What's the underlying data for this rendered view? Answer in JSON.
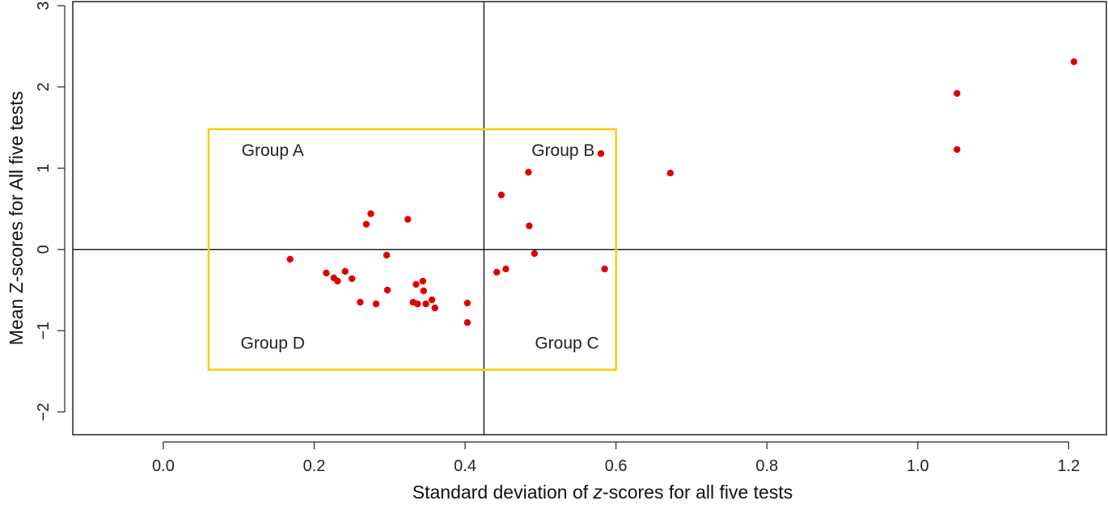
{
  "chart_data": {
    "type": "scatter",
    "title": "",
    "xlabel_parts": [
      "Standard deviation of ",
      "z",
      "-scores for all five tests"
    ],
    "ylabel": "Mean Z-scores for All five tests",
    "xlim": [
      -0.12,
      1.25
    ],
    "ylim": [
      -2.28,
      3.05
    ],
    "xticks": [
      0.0,
      0.2,
      0.4,
      0.6,
      0.8,
      1.0,
      1.2
    ],
    "xtick_labels": [
      "0.0",
      "0.2",
      "0.4",
      "0.6",
      "0.8",
      "1.0",
      "1.2"
    ],
    "yticks": [
      -2,
      -1,
      0,
      1,
      2,
      3
    ],
    "ytick_labels": [
      "−2",
      "−1",
      "0",
      "1",
      "2",
      "3"
    ],
    "reference_lines": {
      "vertical_x": 0.425,
      "horizontal_y": 0
    },
    "group_box": {
      "x": [
        0.06,
        0.6
      ],
      "y": [
        -1.48,
        1.48
      ]
    },
    "group_labels": [
      {
        "label": "Group A",
        "x": 0.145,
        "y": 1.22
      },
      {
        "label": "Group B",
        "x": 0.53,
        "y": 1.22
      },
      {
        "label": "Group C",
        "x": 0.535,
        "y": -1.15
      },
      {
        "label": "Group D",
        "x": 0.145,
        "y": -1.15
      }
    ],
    "colors": {
      "points": "#e00000",
      "box": "#f5d000",
      "lines": "#222222",
      "frame": "#222222"
    },
    "points": [
      {
        "x": 0.168,
        "y": -0.12
      },
      {
        "x": 0.216,
        "y": -0.29
      },
      {
        "x": 0.226,
        "y": -0.35
      },
      {
        "x": 0.231,
        "y": -0.39
      },
      {
        "x": 0.241,
        "y": -0.27
      },
      {
        "x": 0.25,
        "y": -0.36
      },
      {
        "x": 0.261,
        "y": -0.65
      },
      {
        "x": 0.269,
        "y": 0.31
      },
      {
        "x": 0.275,
        "y": 0.44
      },
      {
        "x": 0.282,
        "y": -0.67
      },
      {
        "x": 0.296,
        "y": -0.07
      },
      {
        "x": 0.297,
        "y": -0.5
      },
      {
        "x": 0.324,
        "y": 0.37
      },
      {
        "x": 0.331,
        "y": -0.65
      },
      {
        "x": 0.335,
        "y": -0.43
      },
      {
        "x": 0.337,
        "y": -0.67
      },
      {
        "x": 0.344,
        "y": -0.39
      },
      {
        "x": 0.345,
        "y": -0.51
      },
      {
        "x": 0.348,
        "y": -0.67
      },
      {
        "x": 0.356,
        "y": -0.62
      },
      {
        "x": 0.36,
        "y": -0.72
      },
      {
        "x": 0.403,
        "y": -0.66
      },
      {
        "x": 0.403,
        "y": -0.9
      },
      {
        "x": 0.442,
        "y": -0.28
      },
      {
        "x": 0.448,
        "y": 0.67
      },
      {
        "x": 0.454,
        "y": -0.24
      },
      {
        "x": 0.484,
        "y": 0.95
      },
      {
        "x": 0.485,
        "y": 0.29
      },
      {
        "x": 0.492,
        "y": -0.05
      },
      {
        "x": 0.58,
        "y": 1.18
      },
      {
        "x": 0.585,
        "y": -0.24
      },
      {
        "x": 0.672,
        "y": 0.94
      },
      {
        "x": 1.052,
        "y": 1.92
      },
      {
        "x": 1.052,
        "y": 1.23
      },
      {
        "x": 1.207,
        "y": 2.31
      }
    ]
  }
}
